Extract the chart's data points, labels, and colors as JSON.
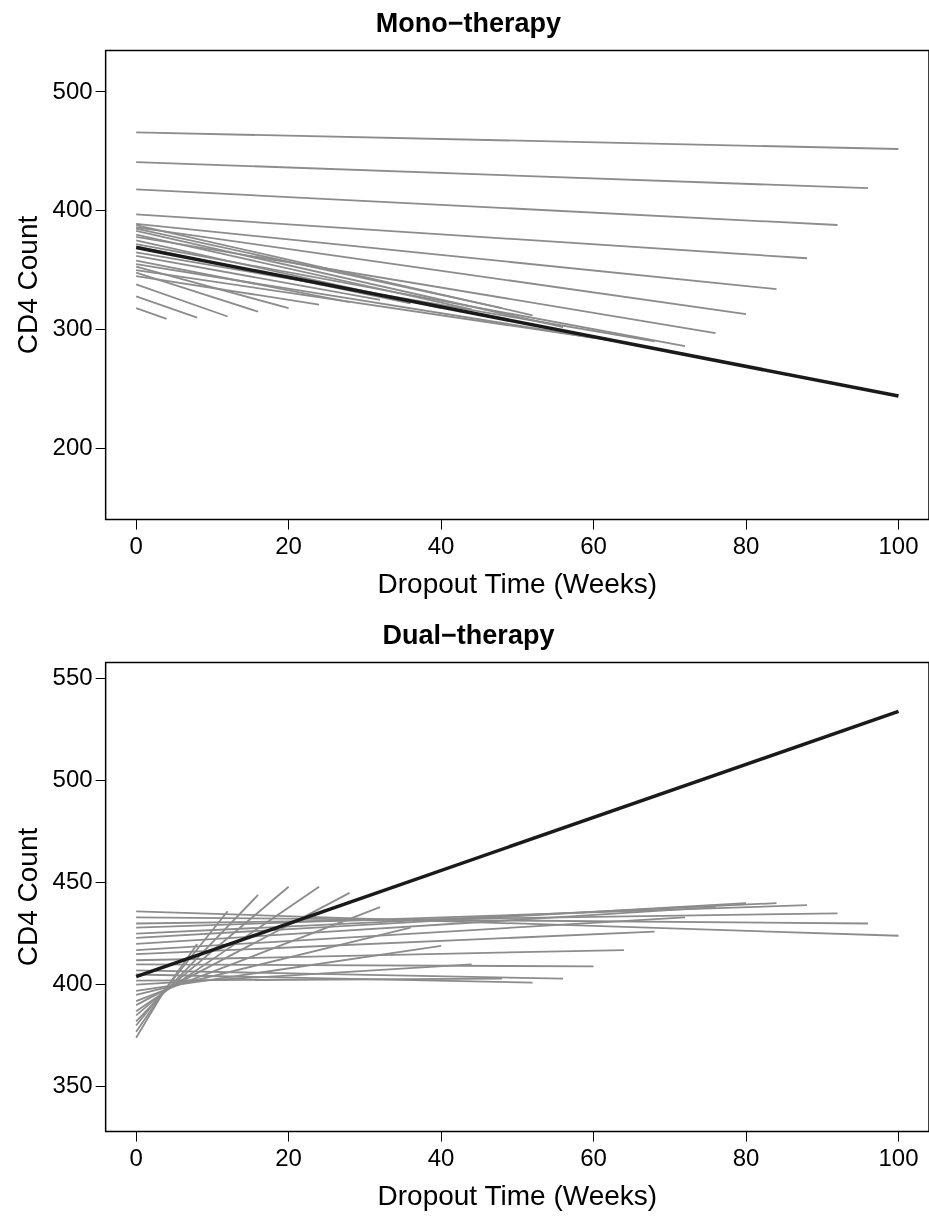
{
  "chart_data": [
    {
      "type": "line",
      "title": "Mono−therapy",
      "xlabel": "Dropout Time (Weeks)",
      "ylabel": "CD4 Count",
      "xlim": [
        -4,
        104
      ],
      "xticks": [
        0,
        20,
        40,
        60,
        80,
        100
      ],
      "ylim": [
        140,
        535
      ],
      "yticks": [
        200,
        300,
        400,
        500
      ],
      "grid": false,
      "legend": false,
      "marker": "none",
      "line_style": "solid",
      "series": [
        {
          "color": "#8c8c8c",
          "x": [
            0,
            4
          ],
          "values": [
            318,
            309
          ]
        },
        {
          "color": "#8c8c8c",
          "x": [
            0,
            8
          ],
          "values": [
            328,
            310
          ]
        },
        {
          "color": "#8c8c8c",
          "x": [
            0,
            12
          ],
          "values": [
            338,
            311
          ]
        },
        {
          "color": "#8c8c8c",
          "x": [
            0,
            16
          ],
          "values": [
            348,
            315
          ]
        },
        {
          "color": "#8c8c8c",
          "x": [
            0,
            20
          ],
          "values": [
            353,
            318
          ]
        },
        {
          "color": "#8c8c8c",
          "x": [
            0,
            24
          ],
          "values": [
            345,
            321
          ]
        },
        {
          "color": "#8c8c8c",
          "x": [
            0,
            28
          ],
          "values": [
            358,
            323
          ]
        },
        {
          "color": "#8c8c8c",
          "x": [
            0,
            32
          ],
          "values": [
            362,
            325
          ]
        },
        {
          "color": "#8c8c8c",
          "x": [
            0,
            36
          ],
          "values": [
            370,
            322
          ]
        },
        {
          "color": "#8c8c8c",
          "x": [
            0,
            40
          ],
          "values": [
            375,
            318
          ]
        },
        {
          "color": "#8c8c8c",
          "x": [
            0,
            44
          ],
          "values": [
            380,
            317
          ]
        },
        {
          "color": "#8c8c8c",
          "x": [
            0,
            48
          ],
          "values": [
            385,
            318
          ]
        },
        {
          "color": "#8c8c8c",
          "x": [
            0,
            52
          ],
          "values": [
            388,
            312
          ]
        },
        {
          "color": "#8c8c8c",
          "x": [
            0,
            56
          ],
          "values": [
            383,
            302
          ]
        },
        {
          "color": "#8c8c8c",
          "x": [
            0,
            60
          ],
          "values": [
            350,
            293
          ]
        },
        {
          "color": "#8c8c8c",
          "x": [
            0,
            64
          ],
          "values": [
            355,
            289
          ]
        },
        {
          "color": "#8c8c8c",
          "x": [
            0,
            68
          ],
          "values": [
            365,
            290
          ]
        },
        {
          "color": "#8c8c8c",
          "x": [
            0,
            72
          ],
          "values": [
            372,
            286
          ]
        },
        {
          "color": "#8c8c8c",
          "x": [
            0,
            76
          ],
          "values": [
            378,
            297
          ]
        },
        {
          "color": "#8c8c8c",
          "x": [
            0,
            80
          ],
          "values": [
            386,
            313
          ]
        },
        {
          "color": "#8c8c8c",
          "x": [
            0,
            84
          ],
          "values": [
            389,
            334
          ]
        },
        {
          "color": "#8c8c8c",
          "x": [
            0,
            88
          ],
          "values": [
            397,
            360
          ]
        },
        {
          "color": "#8c8c8c",
          "x": [
            0,
            92
          ],
          "values": [
            418,
            388
          ]
        },
        {
          "color": "#8c8c8c",
          "x": [
            0,
            96
          ],
          "values": [
            441,
            419
          ]
        },
        {
          "color": "#8c8c8c",
          "x": [
            0,
            100
          ],
          "values": [
            466,
            452
          ]
        },
        {
          "color": "#1a1a1a",
          "x": [
            0,
            100
          ],
          "values": [
            369,
            244
          ]
        }
      ]
    },
    {
      "type": "line",
      "title": "Dual−therapy",
      "xlabel": "Dropout Time (Weeks)",
      "ylabel": "CD4 Count",
      "xlim": [
        -4,
        104
      ],
      "xticks": [
        0,
        20,
        40,
        60,
        80,
        100
      ],
      "ylim": [
        328,
        558
      ],
      "yticks": [
        350,
        400,
        450,
        500,
        550
      ],
      "grid": false,
      "legend": false,
      "marker": "none",
      "line_style": "solid",
      "series": [
        {
          "color": "#8c8c8c",
          "x": [
            0,
            4
          ],
          "values": [
            374,
            399
          ]
        },
        {
          "color": "#8c8c8c",
          "x": [
            0,
            8
          ],
          "values": [
            377,
            420
          ]
        },
        {
          "color": "#8c8c8c",
          "x": [
            0,
            12
          ],
          "values": [
            380,
            436
          ]
        },
        {
          "color": "#8c8c8c",
          "x": [
            0,
            16
          ],
          "values": [
            382,
            444
          ]
        },
        {
          "color": "#8c8c8c",
          "x": [
            0,
            20
          ],
          "values": [
            385,
            448
          ]
        },
        {
          "color": "#8c8c8c",
          "x": [
            0,
            24
          ],
          "values": [
            387,
            448
          ]
        },
        {
          "color": "#8c8c8c",
          "x": [
            0,
            28
          ],
          "values": [
            390,
            445
          ]
        },
        {
          "color": "#8c8c8c",
          "x": [
            0,
            32
          ],
          "values": [
            392,
            438
          ]
        },
        {
          "color": "#8c8c8c",
          "x": [
            0,
            36
          ],
          "values": [
            395,
            428
          ]
        },
        {
          "color": "#8c8c8c",
          "x": [
            0,
            40
          ],
          "values": [
            397,
            419
          ]
        },
        {
          "color": "#8c8c8c",
          "x": [
            0,
            44
          ],
          "values": [
            400,
            410
          ]
        },
        {
          "color": "#8c8c8c",
          "x": [
            0,
            48
          ],
          "values": [
            402,
            403
          ]
        },
        {
          "color": "#8c8c8c",
          "x": [
            0,
            52
          ],
          "values": [
            405,
            401
          ]
        },
        {
          "color": "#8c8c8c",
          "x": [
            0,
            56
          ],
          "values": [
            407,
            403
          ]
        },
        {
          "color": "#8c8c8c",
          "x": [
            0,
            60
          ],
          "values": [
            410,
            409
          ]
        },
        {
          "color": "#8c8c8c",
          "x": [
            0,
            64
          ],
          "values": [
            412,
            417
          ]
        },
        {
          "color": "#8c8c8c",
          "x": [
            0,
            68
          ],
          "values": [
            415,
            426
          ]
        },
        {
          "color": "#8c8c8c",
          "x": [
            0,
            72
          ],
          "values": [
            417,
            433
          ]
        },
        {
          "color": "#8c8c8c",
          "x": [
            0,
            76
          ],
          "values": [
            420,
            438
          ]
        },
        {
          "color": "#8c8c8c",
          "x": [
            0,
            80
          ],
          "values": [
            423,
            440
          ]
        },
        {
          "color": "#8c8c8c",
          "x": [
            0,
            84
          ],
          "values": [
            425,
            440
          ]
        },
        {
          "color": "#8c8c8c",
          "x": [
            0,
            88
          ],
          "values": [
            428,
            439
          ]
        },
        {
          "color": "#8c8c8c",
          "x": [
            0,
            92
          ],
          "values": [
            430,
            435
          ]
        },
        {
          "color": "#8c8c8c",
          "x": [
            0,
            96
          ],
          "values": [
            433,
            430
          ]
        },
        {
          "color": "#8c8c8c",
          "x": [
            0,
            100
          ],
          "values": [
            436,
            424
          ]
        },
        {
          "color": "#1a1a1a",
          "x": [
            0,
            100
          ],
          "values": [
            404,
            534
          ]
        }
      ]
    }
  ]
}
